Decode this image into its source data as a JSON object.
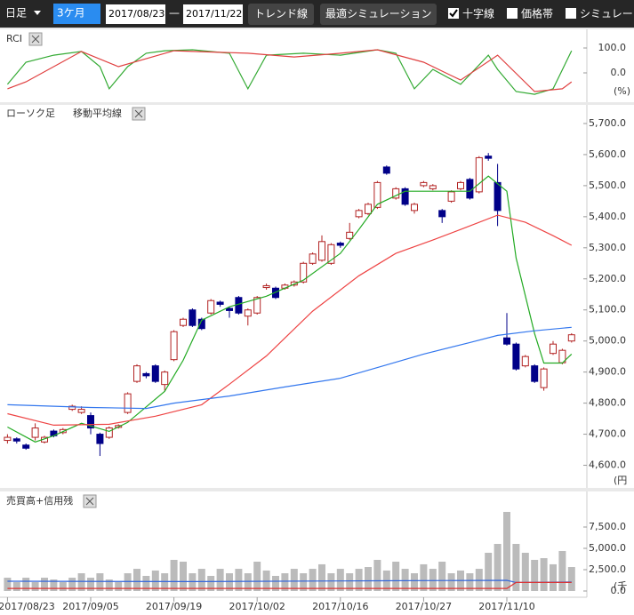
{
  "toolbar": {
    "period_type": "日足",
    "range": "3ケ月",
    "date_from": "2017/08/23",
    "date_sep": "—",
    "date_to": "2017/11/22",
    "button_trend": "トレンド線",
    "button_sim": "最適シミュレーション",
    "check_cross": "十字線",
    "check_price": "価格帯",
    "check_sim": "シミュレー"
  },
  "chart_data": [
    {
      "type": "line",
      "title": "RCI",
      "ylim": [
        -100,
        150
      ],
      "yticks": [
        {
          "value": 100,
          "label": "100.0"
        },
        {
          "value": 0,
          "label": "0.0"
        }
      ],
      "y_unit": "(%)",
      "series": [
        {
          "color": "#33aa33",
          "x": [
            0,
            2,
            5,
            8,
            10,
            11,
            13,
            15,
            17,
            20,
            24,
            26,
            28,
            32,
            36,
            40,
            42,
            44,
            46,
            49,
            52,
            53,
            55,
            57,
            59,
            61
          ],
          "values": [
            -46,
            43,
            71,
            86,
            25,
            -64,
            25,
            79,
            89,
            93,
            79,
            -64,
            71,
            79,
            71,
            93,
            79,
            -64,
            14,
            -46,
            71,
            14,
            -75,
            -86,
            -64,
            89
          ]
        },
        {
          "color": "#e04040",
          "x": [
            0,
            2,
            8,
            12,
            18,
            26,
            31,
            36,
            40,
            45,
            49,
            53,
            57,
            60,
            61
          ],
          "values": [
            -64,
            -36,
            86,
            25,
            89,
            79,
            64,
            79,
            93,
            43,
            -29,
            71,
            -75,
            -64,
            -36
          ]
        }
      ]
    },
    {
      "type": "candlestick",
      "labels": [
        "ローソク足",
        "移動平均線"
      ],
      "ylim": [
        4530,
        5760
      ],
      "y_unit": "(円",
      "yticks": [
        {
          "value": 5700,
          "label": "5,700.0"
        },
        {
          "value": 5600,
          "label": "5,600.0"
        },
        {
          "value": 5500,
          "label": "5,500.0"
        },
        {
          "value": 5400,
          "label": "5,400.0"
        },
        {
          "value": 5300,
          "label": "5,300.0"
        },
        {
          "value": 5200,
          "label": "5,200.0"
        },
        {
          "value": 5100,
          "label": "5,100.0"
        },
        {
          "value": 5000,
          "label": "5,000.0"
        },
        {
          "value": 4900,
          "label": "4,900.0"
        },
        {
          "value": 4800,
          "label": "4,800.0"
        },
        {
          "value": 4700,
          "label": "4,700.0"
        },
        {
          "value": 4600,
          "label": "4,600.0"
        }
      ],
      "up_color": "#b22222",
      "down_color": "#000088",
      "open": [
        4680,
        4685,
        4665,
        4690,
        4675,
        4710,
        4705,
        4780,
        4770,
        4760,
        4700,
        4690,
        4722,
        4770,
        4870,
        4895,
        4920,
        4860,
        4940,
        5050,
        5100,
        5070,
        5090,
        5125,
        5105,
        5140,
        5080,
        5090,
        5172,
        5170,
        5170,
        5180,
        5190,
        5250,
        5260,
        5250,
        5315,
        5330,
        5400,
        5410,
        5430,
        5560,
        5460,
        5490,
        5420,
        5500,
        5490,
        5420,
        5450,
        5490,
        5520,
        5480,
        5595,
        5510,
        5010,
        4990,
        4920,
        4920,
        4850,
        4960,
        4930,
        5000
      ],
      "close": [
        4690,
        4678,
        4655,
        4720,
        4690,
        4695,
        4715,
        4790,
        4780,
        4720,
        4670,
        4720,
        4728,
        4830,
        4920,
        4888,
        4870,
        4900,
        5030,
        5070,
        5050,
        5040,
        5130,
        5118,
        5098,
        5090,
        5100,
        5140,
        5178,
        5140,
        5180,
        5190,
        5250,
        5280,
        5320,
        5310,
        5308,
        5350,
        5420,
        5440,
        5510,
        5540,
        5490,
        5440,
        5440,
        5510,
        5500,
        5400,
        5480,
        5510,
        5460,
        5590,
        5588,
        5420,
        4990,
        4910,
        4950,
        4870,
        4910,
        4990,
        4970,
        5020
      ],
      "high": [
        4700,
        4690,
        4670,
        4735,
        4695,
        4715,
        4720,
        4795,
        4790,
        4770,
        4705,
        4725,
        4732,
        4835,
        4925,
        4900,
        4925,
        4905,
        5035,
        5075,
        5105,
        5075,
        5135,
        5130,
        5110,
        5145,
        5105,
        5145,
        5185,
        5175,
        5185,
        5195,
        5255,
        5285,
        5340,
        5315,
        5320,
        5380,
        5425,
        5445,
        5515,
        5565,
        5495,
        5495,
        5445,
        5515,
        5505,
        5425,
        5485,
        5515,
        5525,
        5595,
        5605,
        5570,
        5090,
        4995,
        4955,
        4925,
        4915,
        5000,
        4975,
        5025
      ],
      "low": [
        4670,
        4670,
        4650,
        4680,
        4670,
        4690,
        4700,
        4775,
        4765,
        4700,
        4630,
        4685,
        4718,
        4765,
        4865,
        4880,
        4865,
        4840,
        4935,
        5045,
        5045,
        5035,
        5085,
        5110,
        5075,
        5085,
        5050,
        5085,
        5165,
        5135,
        5165,
        5175,
        5185,
        5245,
        5255,
        5245,
        5300,
        5325,
        5395,
        5405,
        5425,
        5535,
        5455,
        5435,
        5410,
        5495,
        5485,
        5380,
        5445,
        5485,
        5455,
        5475,
        5580,
        5370,
        4985,
        4905,
        4915,
        4865,
        4840,
        4955,
        4925,
        4995
      ],
      "lines": [
        {
          "color": "#22aa22",
          "x": [
            0,
            3,
            5,
            8,
            11,
            13,
            17,
            19,
            21,
            24,
            28,
            32,
            36,
            38,
            40,
            43,
            47,
            50,
            52,
            54,
            55,
            57,
            58,
            60,
            61
          ],
          "values": [
            4723,
            4675,
            4695,
            4735,
            4709,
            4738,
            4838,
            4938,
            5067,
            5110,
            5144,
            5196,
            5282,
            5359,
            5440,
            5482,
            5482,
            5482,
            5531,
            5482,
            5267,
            5024,
            4929,
            4929,
            4958
          ]
        },
        {
          "color": "#ee4444",
          "x": [
            0,
            5,
            11,
            16,
            21,
            24,
            28,
            33,
            38,
            42,
            46,
            49,
            53,
            56,
            59,
            61
          ],
          "values": [
            4766,
            4729,
            4732,
            4758,
            4795,
            4861,
            4952,
            5096,
            5210,
            5282,
            5325,
            5359,
            5405,
            5382,
            5339,
            5308
          ]
        },
        {
          "color": "#3377ee",
          "x": [
            0,
            9,
            15,
            18,
            24,
            30,
            36,
            41,
            45,
            50,
            53,
            57,
            61
          ],
          "values": [
            4795,
            4786,
            4783,
            4800,
            4823,
            4852,
            4880,
            4923,
            4958,
            4995,
            5018,
            5033,
            5044
          ]
        }
      ]
    },
    {
      "type": "bar",
      "title": "売買高+信用残",
      "ylim": [
        0,
        9500
      ],
      "y_unit": "(千",
      "yticks": [
        {
          "value": 7500,
          "label": "7,500.0"
        },
        {
          "value": 5000,
          "label": "5,000.0"
        },
        {
          "value": 2500,
          "label": "2,500.0"
        },
        {
          "value": 0,
          "label": "0.0"
        }
      ],
      "color": "#bbbbbb",
      "categories": [
        "2017/08/23",
        null,
        null,
        null,
        null,
        null,
        null,
        null,
        null,
        "2017/09/05",
        null,
        null,
        null,
        null,
        null,
        null,
        null,
        null,
        "2017/09/19",
        null,
        null,
        null,
        null,
        null,
        null,
        null,
        null,
        "2017/10/02",
        null,
        null,
        null,
        null,
        null,
        null,
        null,
        null,
        "2017/10/16",
        null,
        null,
        null,
        null,
        null,
        null,
        null,
        null,
        "2017/10/27",
        null,
        null,
        null,
        null,
        null,
        null,
        null,
        null,
        "2017/11/10",
        null,
        null,
        null,
        null,
        null,
        null,
        null
      ],
      "values": [
        1560,
        1040,
        1560,
        1040,
        1560,
        1350,
        1040,
        1560,
        2080,
        1560,
        2080,
        1350,
        1040,
        2080,
        2600,
        1770,
        2400,
        2080,
        3650,
        3440,
        2080,
        2600,
        1770,
        2600,
        2080,
        2600,
        2080,
        3440,
        2400,
        1770,
        2080,
        2600,
        2080,
        2600,
        3130,
        2080,
        2600,
        2080,
        2600,
        2810,
        3650,
        2400,
        3440,
        2600,
        2080,
        3130,
        2600,
        3440,
        2080,
        2400,
        2080,
        2600,
        4480,
        5520,
        9270,
        5520,
        4480,
        3650,
        3850,
        3130,
        4690,
        2810
      ],
      "lines": [
        {
          "color": "#3366dd",
          "x": [
            0,
            20,
            40,
            54,
            55,
            61
          ],
          "values": [
            1150,
            1100,
            1200,
            1250,
            1000,
            1050
          ]
        },
        {
          "color": "#dd3333",
          "x": [
            0,
            54,
            55,
            61
          ],
          "values": [
            300,
            300,
            1000,
            1000
          ]
        }
      ]
    }
  ]
}
